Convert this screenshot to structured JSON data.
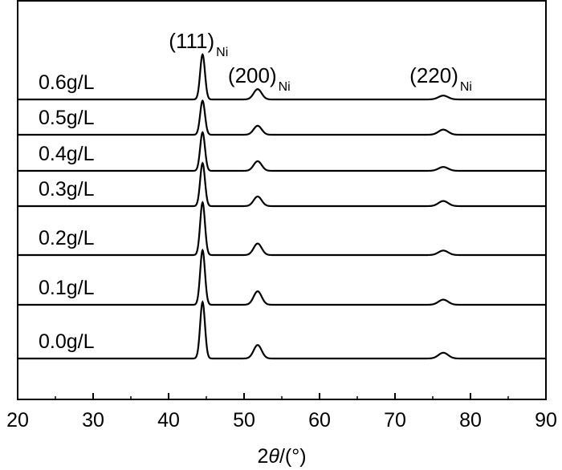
{
  "chart_data": {
    "type": "line",
    "xlabel_parts": [
      "2",
      "θ",
      "/(°)"
    ],
    "xlim": [
      20,
      90
    ],
    "xticks": [
      "20",
      "30",
      "40",
      "50",
      "60",
      "70",
      "80",
      "90"
    ],
    "ylabel": "",
    "yticks": "none",
    "grid": false,
    "legend": "none",
    "series": [
      {
        "name": "0.6g/L",
        "peaks": [
          {
            "x": 44.5,
            "height": 0.7
          },
          {
            "x": 51.8,
            "height": 0.16
          },
          {
            "x": 76.4,
            "height": 0.06
          }
        ]
      },
      {
        "name": "0.5g/L",
        "peaks": [
          {
            "x": 44.5,
            "height": 0.53
          },
          {
            "x": 51.8,
            "height": 0.14
          },
          {
            "x": 76.4,
            "height": 0.08
          }
        ]
      },
      {
        "name": "0.4g/L",
        "peaks": [
          {
            "x": 44.5,
            "height": 0.6
          },
          {
            "x": 51.8,
            "height": 0.15
          },
          {
            "x": 76.4,
            "height": 0.06
          }
        ]
      },
      {
        "name": "0.3g/L",
        "peaks": [
          {
            "x": 44.5,
            "height": 0.67
          },
          {
            "x": 51.8,
            "height": 0.15
          },
          {
            "x": 76.4,
            "height": 0.08
          }
        ]
      },
      {
        "name": "0.2g/L",
        "peaks": [
          {
            "x": 44.5,
            "height": 0.82
          },
          {
            "x": 51.8,
            "height": 0.18
          },
          {
            "x": 76.4,
            "height": 0.07
          }
        ]
      },
      {
        "name": "0.1g/L",
        "peaks": [
          {
            "x": 44.5,
            "height": 0.85
          },
          {
            "x": 51.8,
            "height": 0.21
          },
          {
            "x": 76.4,
            "height": 0.08
          }
        ]
      },
      {
        "name": "0.0g/L",
        "peaks": [
          {
            "x": 44.5,
            "height": 0.88
          },
          {
            "x": 51.8,
            "height": 0.21
          },
          {
            "x": 76.4,
            "height": 0.09
          }
        ]
      }
    ],
    "annotations": [
      {
        "text": "(111)",
        "sub": "Ni",
        "x": 44.5
      },
      {
        "text": "(200)",
        "sub": "Ni",
        "x": 51.8
      },
      {
        "text": "(220)",
        "sub": "Ni",
        "x": 76.4
      }
    ]
  }
}
